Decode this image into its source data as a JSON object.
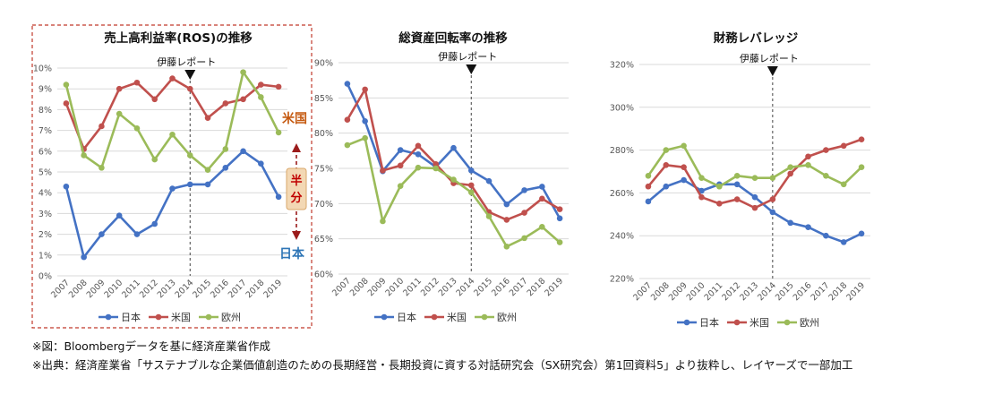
{
  "legend_labels": [
    "日本",
    "米国",
    "欧州"
  ],
  "colors": {
    "japan": "#4472c4",
    "us": "#c0504d",
    "europe": "#9bbb59",
    "highlight_border": "#c0392b",
    "half_badge": "#f3d8b4"
  },
  "footnotes": [
    "※図：Bloombergデータを基に経済産業省作成",
    "※出典：経済産業省「サステナブルな企業価値創造のための長期経営・長期投資に資する対話研究会（SX研究会）第1回資料5」より抜粋し、レイヤーズで一部加工"
  ],
  "chart_data": [
    {
      "type": "line",
      "title": "売上高利益率(ROS)の推移",
      "x": [
        "2007",
        "2008",
        "2009",
        "2010",
        "2011",
        "2012",
        "2013",
        "2014",
        "2015",
        "2016",
        "2017",
        "2018",
        "2019"
      ],
      "ylim": [
        0,
        10
      ],
      "y_ticks": [
        "0%",
        "1%",
        "2%",
        "3%",
        "4%",
        "5%",
        "6%",
        "7%",
        "8%",
        "9%",
        "10%"
      ],
      "annotation_marker": {
        "label": "伊藤レポート",
        "x": "2014"
      },
      "series": [
        {
          "name": "日本",
          "values": [
            4.3,
            0.9,
            2.0,
            2.9,
            2.0,
            2.5,
            4.2,
            4.4,
            4.4,
            5.2,
            6.0,
            5.4,
            3.8
          ]
        },
        {
          "name": "米国",
          "values": [
            8.3,
            6.1,
            7.2,
            9.0,
            9.3,
            8.5,
            9.5,
            9.0,
            7.6,
            8.3,
            8.5,
            9.2,
            9.1
          ]
        },
        {
          "name": "欧州",
          "values": [
            9.2,
            5.8,
            5.2,
            7.8,
            7.1,
            5.6,
            6.8,
            5.8,
            5.1,
            6.1,
            9.8,
            8.6,
            6.9
          ]
        }
      ],
      "callouts": {
        "us": "米国",
        "japan": "日本",
        "half": "半分"
      },
      "highlighted": true
    },
    {
      "type": "line",
      "title": "総資産回転率の推移",
      "x": [
        "2007",
        "2008",
        "2009",
        "2010",
        "2011",
        "2012",
        "2013",
        "2014",
        "2015",
        "2016",
        "2017",
        "2018",
        "2019"
      ],
      "ylim": [
        60,
        90
      ],
      "y_ticks": [
        "60%",
        "65%",
        "70%",
        "75%",
        "80%",
        "85%",
        "90%"
      ],
      "annotation_marker": {
        "label": "伊藤レポート",
        "x": "2014"
      },
      "series": [
        {
          "name": "日本",
          "values": [
            87.0,
            81.7,
            74.6,
            77.6,
            77.0,
            75.2,
            77.9,
            74.7,
            73.2,
            69.9,
            71.9,
            72.4,
            67.9
          ]
        },
        {
          "name": "米国",
          "values": [
            81.9,
            86.2,
            74.7,
            75.4,
            78.2,
            75.6,
            72.9,
            72.6,
            68.8,
            67.7,
            68.7,
            70.7,
            69.2
          ]
        },
        {
          "name": "欧州",
          "values": [
            78.3,
            79.3,
            67.5,
            72.5,
            75.1,
            75.0,
            73.4,
            71.6,
            68.2,
            63.9,
            65.1,
            66.7,
            64.5
          ]
        }
      ]
    },
    {
      "type": "line",
      "title": "財務レバレッジ",
      "x": [
        "2007",
        "2008",
        "2009",
        "2010",
        "2011",
        "2012",
        "2013",
        "2014",
        "2015",
        "2016",
        "2017",
        "2018",
        "2019"
      ],
      "ylim": [
        220,
        320
      ],
      "y_ticks": [
        "220%",
        "240%",
        "260%",
        "280%",
        "300%",
        "320%"
      ],
      "annotation_marker": {
        "label": "伊藤レポート",
        "x": "2014"
      },
      "series": [
        {
          "name": "日本",
          "values": [
            256,
            263,
            266,
            261,
            264,
            264,
            258,
            251,
            246,
            244,
            240,
            237,
            241
          ]
        },
        {
          "name": "米国",
          "values": [
            263,
            273,
            272,
            258,
            255,
            257,
            253,
            257,
            269,
            277,
            280,
            282,
            285
          ]
        },
        {
          "name": "欧州",
          "values": [
            268,
            280,
            282,
            267,
            263,
            268,
            267,
            267,
            272,
            273,
            268,
            264,
            272
          ]
        }
      ]
    }
  ]
}
